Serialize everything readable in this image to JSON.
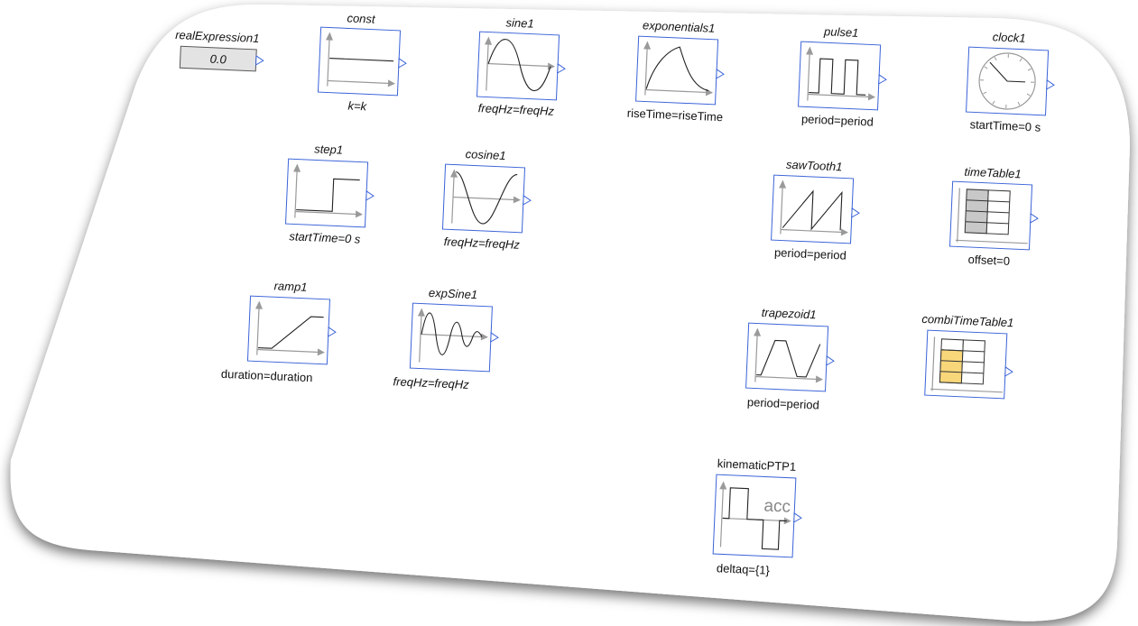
{
  "diagram": {
    "blocks": [
      {
        "id": "realExpression1",
        "name": "realExpression1",
        "param": "",
        "value": "0.0",
        "icon": "real-expression-icon"
      },
      {
        "id": "const",
        "name": "const",
        "param": "k=k",
        "icon": "constant-icon"
      },
      {
        "id": "sine1",
        "name": "sine1",
        "param": "freqHz=freqHz",
        "icon": "sine-icon"
      },
      {
        "id": "exponentials1",
        "name": "exponentials1",
        "param": "riseTime=riseTime",
        "icon": "exponentials-icon"
      },
      {
        "id": "pulse1",
        "name": "pulse1",
        "param": "period=period",
        "icon": "pulse-icon"
      },
      {
        "id": "clock1",
        "name": "clock1",
        "param": "startTime=0 s",
        "icon": "clock-icon"
      },
      {
        "id": "step1",
        "name": "step1",
        "param": "startTime=0 s",
        "icon": "step-icon"
      },
      {
        "id": "cosine1",
        "name": "cosine1",
        "param": "freqHz=freqHz",
        "icon": "cosine-icon"
      },
      {
        "id": "sawTooth1",
        "name": "sawTooth1",
        "param": "period=period",
        "icon": "sawtooth-icon"
      },
      {
        "id": "timeTable1",
        "name": "timeTable1",
        "param": "offset=0",
        "icon": "time-table-icon"
      },
      {
        "id": "ramp1",
        "name": "ramp1",
        "param": "duration=duration",
        "icon": "ramp-icon"
      },
      {
        "id": "expSine1",
        "name": "expSine1",
        "param": "freqHz=freqHz",
        "icon": "exp-sine-icon"
      },
      {
        "id": "trapezoid1",
        "name": "trapezoid1",
        "param": "period=period",
        "icon": "trapezoid-icon"
      },
      {
        "id": "combiTimeTable1",
        "name": "combiTimeTable1",
        "param": "",
        "icon": "combi-time-table-icon"
      },
      {
        "id": "kinematicPTP1",
        "name": "kinematicPTP1",
        "param": "deltaq={1}",
        "label": "acc",
        "icon": "kinematic-ptp-icon"
      }
    ],
    "colors": {
      "frame": "#3a63d8",
      "axis": "#9a9a9a",
      "curve": "#222222",
      "table_gray": "#c8c8c8",
      "table_yellow": "#f8d77a",
      "expression_fill": "#e3e3e3"
    }
  }
}
